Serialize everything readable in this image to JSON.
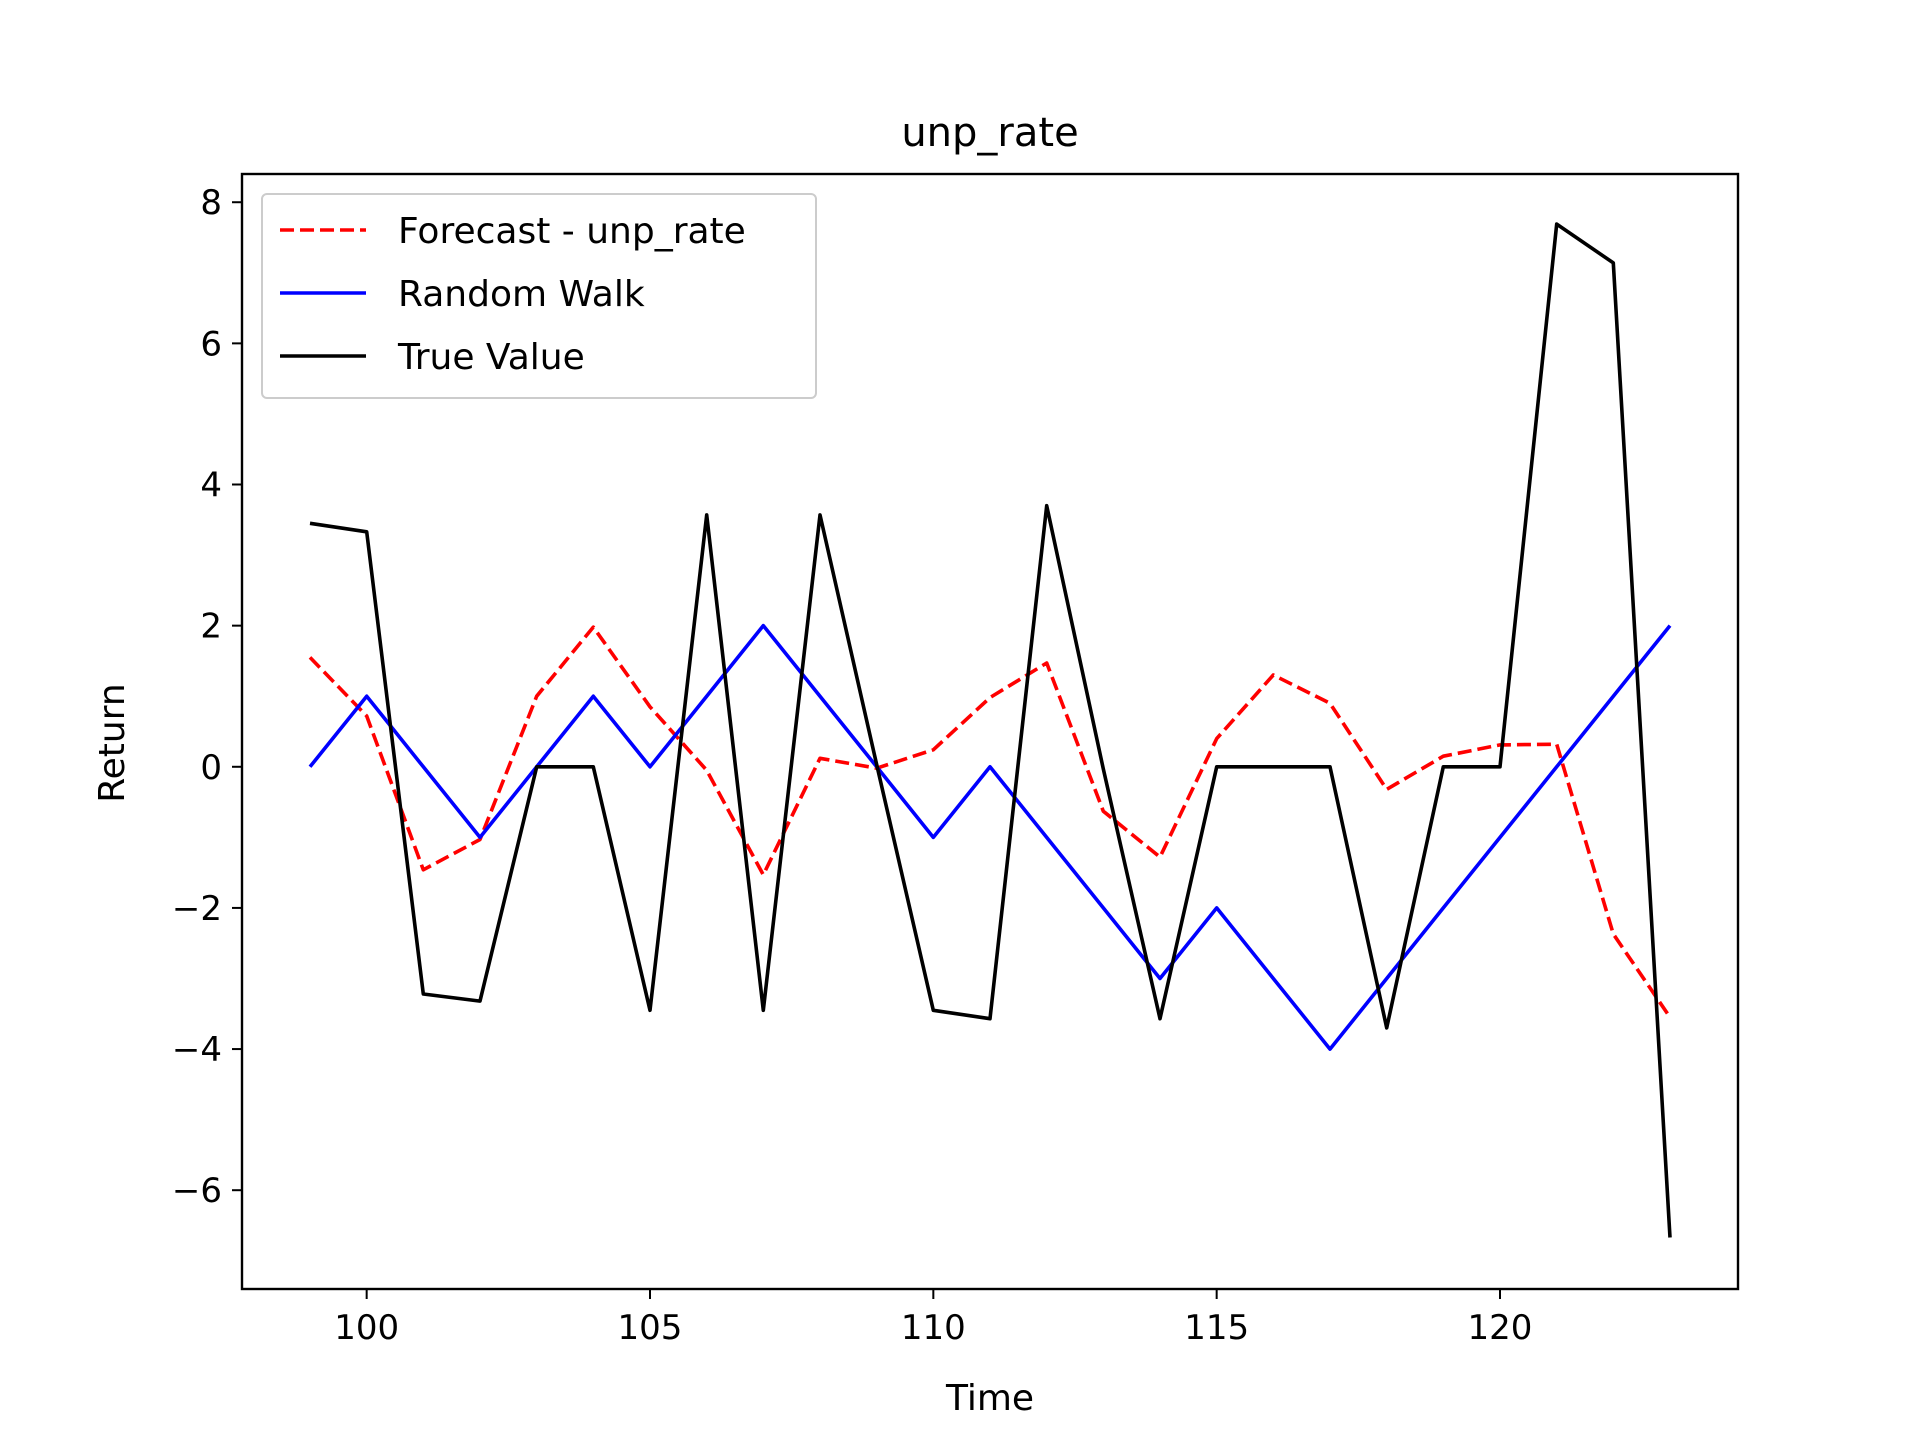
{
  "chart_data": {
    "type": "line",
    "title": "unp_rate",
    "xlabel": "Time",
    "ylabel": "Return",
    "xlim": [
      97.8,
      124.2
    ],
    "ylim": [
      -7.4,
      8.4
    ],
    "xticks": [
      100,
      105,
      110,
      115,
      120
    ],
    "yticks": [
      -6,
      -4,
      -2,
      0,
      2,
      4,
      6,
      8
    ],
    "xtick_labels": [
      "100",
      "105",
      "110",
      "115",
      "120"
    ],
    "ytick_labels": [
      "−6",
      "−4",
      "−2",
      "0",
      "2",
      "4",
      "6",
      "8"
    ],
    "grid": false,
    "legend_position": "upper left",
    "x": [
      99,
      100,
      101,
      102,
      103,
      104,
      105,
      106,
      107,
      108,
      109,
      110,
      111,
      112,
      113,
      114,
      115,
      116,
      117,
      118,
      119,
      120,
      121,
      122,
      123
    ],
    "series": [
      {
        "name": "Forecast - unp_rate",
        "color": "#ff0000",
        "dash": "dashed",
        "values": [
          1.55,
          0.72,
          -1.46,
          -1.03,
          1.0,
          1.98,
          0.85,
          -0.05,
          -1.53,
          0.12,
          -0.02,
          0.24,
          0.98,
          1.47,
          -0.63,
          -1.28,
          0.4,
          1.3,
          0.9,
          -0.32,
          0.15,
          0.31,
          0.32,
          -2.37,
          -3.55
        ]
      },
      {
        "name": "Random Walk",
        "color": "#0000ff",
        "dash": "solid",
        "values": [
          0,
          1,
          0,
          -1,
          0,
          1,
          0,
          1,
          2,
          1,
          0,
          -1,
          0,
          -1,
          -2,
          -3,
          -2,
          -3,
          -4,
          -3,
          -2,
          -1,
          0,
          1,
          2
        ]
      },
      {
        "name": "True Value",
        "color": "#000000",
        "dash": "solid",
        "values": [
          3.45,
          3.33,
          -3.22,
          -3.32,
          0,
          0,
          -3.45,
          3.57,
          -3.45,
          3.57,
          0.03,
          -3.45,
          -3.57,
          3.7,
          -0.03,
          -3.57,
          0,
          0,
          0,
          -3.7,
          0,
          0,
          7.69,
          7.14,
          -6.67
        ]
      }
    ]
  }
}
